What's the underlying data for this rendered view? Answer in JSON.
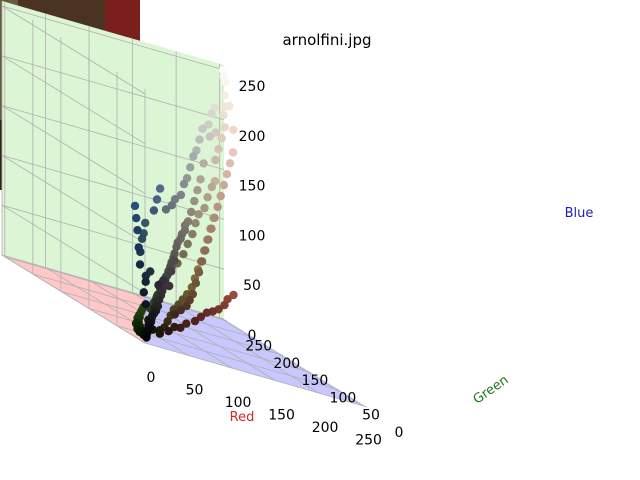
{
  "chart_data": {
    "type": "scatter",
    "subtype": "3d",
    "title": "arnolfini.jpg",
    "xlabel": "Red",
    "ylabel": "Green",
    "zlabel": "Blue",
    "xlim": [
      0,
      255
    ],
    "ylim": [
      0,
      255
    ],
    "zlim": [
      0,
      255
    ],
    "xticks": [
      "0",
      "50",
      "100",
      "150",
      "200",
      "250"
    ],
    "yticks": [
      "0",
      "50",
      "100",
      "150",
      "200",
      "250"
    ],
    "zticks": [
      "0",
      "50",
      "100",
      "150",
      "200",
      "250"
    ],
    "grid": true,
    "inset_image": "arnolfini portrait thumbnail (top-left)",
    "colors": {
      "xlabel": "#d62728",
      "ylabel": "#1a7a1a",
      "zlabel": "#1f1fb4",
      "pane_x": "#ffc8c8",
      "pane_y": "#dcf5d4",
      "pane_z": "#c8c8ff"
    },
    "points": [
      [
        10,
        12,
        8
      ],
      [
        15,
        18,
        10
      ],
      [
        20,
        25,
        14
      ],
      [
        25,
        28,
        18
      ],
      [
        30,
        35,
        20
      ],
      [
        12,
        10,
        15
      ],
      [
        18,
        22,
        20
      ],
      [
        22,
        20,
        12
      ],
      [
        28,
        30,
        25
      ],
      [
        35,
        38,
        30
      ],
      [
        40,
        42,
        35
      ],
      [
        45,
        50,
        38
      ],
      [
        50,
        55,
        42
      ],
      [
        55,
        58,
        48
      ],
      [
        60,
        65,
        52
      ],
      [
        8,
        15,
        5
      ],
      [
        14,
        28,
        6
      ],
      [
        20,
        40,
        8
      ],
      [
        25,
        50,
        10
      ],
      [
        30,
        60,
        12
      ],
      [
        35,
        65,
        14
      ],
      [
        40,
        55,
        12
      ],
      [
        60,
        40,
        30
      ],
      [
        70,
        45,
        35
      ],
      [
        80,
        50,
        40
      ],
      [
        90,
        60,
        45
      ],
      [
        100,
        70,
        50
      ],
      [
        110,
        80,
        60
      ],
      [
        120,
        90,
        70
      ],
      [
        130,
        100,
        80
      ],
      [
        140,
        110,
        90
      ],
      [
        150,
        120,
        100
      ],
      [
        160,
        130,
        110
      ],
      [
        170,
        140,
        120
      ],
      [
        180,
        150,
        130
      ],
      [
        190,
        160,
        140
      ],
      [
        200,
        170,
        150
      ],
      [
        210,
        180,
        160
      ],
      [
        220,
        190,
        170
      ],
      [
        230,
        200,
        180
      ],
      [
        240,
        215,
        200
      ],
      [
        245,
        230,
        220
      ],
      [
        250,
        245,
        240
      ],
      [
        20,
        40,
        70
      ],
      [
        25,
        50,
        85
      ],
      [
        30,
        60,
        100
      ],
      [
        35,
        70,
        110
      ],
      [
        40,
        80,
        120
      ],
      [
        30,
        55,
        80
      ],
      [
        45,
        75,
        90
      ],
      [
        50,
        80,
        95
      ],
      [
        55,
        85,
        105
      ],
      [
        65,
        85,
        120
      ],
      [
        75,
        95,
        130
      ],
      [
        85,
        105,
        140
      ],
      [
        95,
        110,
        120
      ],
      [
        105,
        115,
        125
      ],
      [
        115,
        125,
        130
      ],
      [
        125,
        130,
        135
      ],
      [
        135,
        140,
        145
      ],
      [
        145,
        150,
        150
      ],
      [
        155,
        160,
        160
      ],
      [
        165,
        170,
        170
      ],
      [
        175,
        180,
        175
      ],
      [
        185,
        190,
        185
      ],
      [
        195,
        200,
        195
      ],
      [
        205,
        205,
        200
      ],
      [
        215,
        215,
        210
      ],
      [
        225,
        225,
        215
      ],
      [
        90,
        40,
        35
      ],
      [
        100,
        45,
        40
      ],
      [
        110,
        50,
        42
      ],
      [
        120,
        55,
        45
      ],
      [
        130,
        60,
        50
      ],
      [
        140,
        70,
        55
      ],
      [
        150,
        75,
        60
      ],
      [
        60,
        30,
        20
      ],
      [
        70,
        35,
        25
      ],
      [
        80,
        35,
        30
      ],
      [
        50,
        25,
        20
      ],
      [
        40,
        20,
        15
      ],
      [
        45,
        60,
        25
      ],
      [
        55,
        70,
        30
      ],
      [
        65,
        80,
        35
      ],
      [
        75,
        90,
        45
      ],
      [
        85,
        95,
        55
      ],
      [
        95,
        100,
        65
      ],
      [
        105,
        105,
        70
      ],
      [
        115,
        110,
        80
      ],
      [
        125,
        118,
        90
      ],
      [
        135,
        125,
        100
      ],
      [
        145,
        135,
        110
      ],
      [
        155,
        145,
        118
      ],
      [
        165,
        150,
        125
      ],
      [
        175,
        160,
        135
      ],
      [
        185,
        168,
        145
      ],
      [
        195,
        178,
        150
      ],
      [
        5,
        5,
        5
      ],
      [
        8,
        8,
        10
      ],
      [
        12,
        14,
        12
      ],
      [
        16,
        16,
        18
      ],
      [
        22,
        22,
        24
      ],
      [
        26,
        24,
        28
      ],
      [
        32,
        30,
        30
      ],
      [
        38,
        36,
        34
      ],
      [
        42,
        40,
        40
      ],
      [
        48,
        46,
        44
      ],
      [
        52,
        50,
        48
      ],
      [
        58,
        56,
        52
      ],
      [
        62,
        60,
        58
      ],
      [
        68,
        66,
        62
      ],
      [
        72,
        70,
        66
      ],
      [
        78,
        76,
        70
      ],
      [
        82,
        80,
        74
      ],
      [
        88,
        86,
        78
      ],
      [
        92,
        90,
        82
      ],
      [
        98,
        96,
        88
      ],
      [
        102,
        100,
        92
      ],
      [
        108,
        104,
        96
      ],
      [
        112,
        108,
        100
      ],
      [
        118,
        112,
        104
      ],
      [
        122,
        118,
        108
      ],
      [
        128,
        122,
        112
      ],
      [
        60,
        50,
        55
      ],
      [
        70,
        62,
        68
      ],
      [
        80,
        72,
        78
      ],
      [
        50,
        45,
        60
      ],
      [
        40,
        38,
        55
      ],
      [
        35,
        45,
        65
      ],
      [
        28,
        42,
        60
      ],
      [
        24,
        36,
        55
      ],
      [
        18,
        30,
        45
      ],
      [
        15,
        22,
        35
      ],
      [
        30,
        20,
        10
      ],
      [
        35,
        28,
        12
      ],
      [
        45,
        35,
        15
      ],
      [
        55,
        45,
        20
      ],
      [
        65,
        55,
        25
      ],
      [
        75,
        65,
        30
      ],
      [
        85,
        72,
        35
      ],
      [
        95,
        80,
        40
      ],
      [
        105,
        88,
        45
      ],
      [
        115,
        95,
        52
      ],
      [
        125,
        105,
        60
      ],
      [
        135,
        115,
        68
      ],
      [
        145,
        125,
        75
      ],
      [
        155,
        135,
        85
      ],
      [
        165,
        145,
        95
      ],
      [
        175,
        155,
        105
      ],
      [
        185,
        165,
        115
      ],
      [
        200,
        185,
        170
      ],
      [
        210,
        195,
        180
      ],
      [
        220,
        205,
        190
      ],
      [
        230,
        215,
        200
      ],
      [
        235,
        225,
        210
      ],
      [
        240,
        230,
        218
      ],
      [
        245,
        238,
        228
      ],
      [
        250,
        248,
        245
      ],
      [
        252,
        252,
        250
      ],
      [
        200,
        195,
        190
      ],
      [
        210,
        200,
        195
      ],
      [
        180,
        175,
        165
      ],
      [
        170,
        165,
        150
      ],
      [
        160,
        155,
        140
      ],
      [
        150,
        145,
        130
      ],
      [
        140,
        135,
        120
      ],
      [
        10,
        25,
        5
      ],
      [
        12,
        32,
        6
      ],
      [
        16,
        38,
        8
      ],
      [
        18,
        44,
        9
      ],
      [
        22,
        48,
        10
      ],
      [
        26,
        52,
        12
      ],
      [
        30,
        56,
        14
      ],
      [
        34,
        62,
        16
      ],
      [
        38,
        66,
        18
      ],
      [
        42,
        70,
        20
      ],
      [
        46,
        74,
        22
      ]
    ]
  }
}
